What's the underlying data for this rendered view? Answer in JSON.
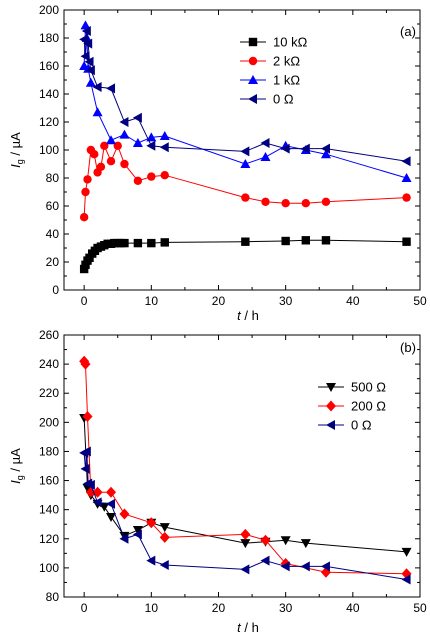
{
  "chart_data": [
    {
      "type": "line",
      "panel_label": "(a)",
      "xlabel": "t / h",
      "xlabel_italic": "t",
      "xlabel_rest": " / h",
      "ylabel_italic": "I",
      "ylabel_sub": "g",
      "ylabel_rest": " / µA",
      "xlim": [
        -3,
        50
      ],
      "ylim": [
        0,
        200
      ],
      "xticks": [
        0,
        10,
        20,
        30,
        40,
        50
      ],
      "yticks": [
        0,
        20,
        40,
        60,
        80,
        100,
        120,
        140,
        160,
        180,
        200
      ],
      "legend_position": "top-right",
      "series": [
        {
          "name": "10 kΩ",
          "color": "#000000",
          "marker": "square",
          "x": [
            0,
            0.2,
            0.5,
            0.8,
            1.2,
            1.6,
            2,
            2.5,
            3,
            3.5,
            4,
            4.5,
            5,
            5.5,
            6,
            8,
            10,
            12,
            24,
            30,
            33,
            36,
            48
          ],
          "y": [
            15,
            18,
            21,
            23,
            26,
            28,
            30,
            31,
            32,
            33,
            33,
            33.5,
            33.5,
            33.5,
            33.5,
            33.5,
            33.5,
            34,
            34.5,
            35,
            35.5,
            35.5,
            34.5
          ]
        },
        {
          "name": "2 kΩ",
          "color": "#ff0000",
          "marker": "circle",
          "x": [
            0,
            0.2,
            0.5,
            1,
            1.5,
            2,
            2.5,
            3,
            4,
            5,
            6,
            8,
            10,
            12,
            24,
            27,
            30,
            33,
            36,
            48
          ],
          "y": [
            52,
            70,
            79,
            100,
            97,
            84,
            88,
            103,
            92,
            103,
            90,
            78,
            81,
            82,
            66,
            63,
            62,
            62,
            63,
            66
          ]
        },
        {
          "name": "1 kΩ",
          "color": "#0000ff",
          "marker": "triangle-up",
          "x": [
            0,
            0.2,
            0.4,
            0.6,
            1,
            2,
            4,
            6,
            8,
            10,
            12,
            24,
            27,
            30,
            33,
            36,
            48
          ],
          "y": [
            160,
            189,
            180,
            158,
            148,
            127,
            107,
            111,
            105,
            109,
            110,
            90,
            95,
            103,
            100,
            97,
            80
          ]
        },
        {
          "name": "0 Ω",
          "color": "#000080",
          "marker": "triangle-left",
          "x": [
            0,
            0.2,
            0.4,
            0.6,
            0.8,
            1,
            2,
            4,
            6,
            8,
            10,
            12,
            24,
            27,
            30,
            33,
            36,
            48
          ],
          "y": [
            179,
            167,
            185,
            176,
            163,
            157,
            145,
            144,
            120,
            123,
            103,
            102,
            99,
            105,
            101,
            101,
            101,
            92
          ]
        }
      ]
    },
    {
      "type": "line",
      "panel_label": "(b)",
      "xlabel": "t / h",
      "xlabel_italic": "t",
      "xlabel_rest": " / h",
      "ylabel_italic": "I",
      "ylabel_sub": "g",
      "ylabel_rest": " / µA",
      "xlim": [
        -3,
        50
      ],
      "ylim": [
        80,
        260
      ],
      "xticks": [
        0,
        10,
        20,
        30,
        40,
        50
      ],
      "yticks": [
        80,
        100,
        120,
        140,
        160,
        180,
        200,
        220,
        240,
        260
      ],
      "legend_position": "right",
      "series": [
        {
          "name": "500 Ω",
          "color": "#000000",
          "marker": "triangle-down",
          "x": [
            0,
            0.5,
            1,
            2,
            3,
            4,
            6,
            8,
            10,
            12,
            24,
            27,
            30,
            33,
            48
          ],
          "y": [
            203,
            155,
            150,
            144,
            142,
            135,
            122,
            126,
            131,
            128,
            117,
            118,
            119,
            117,
            111
          ]
        },
        {
          "name": "200 Ω",
          "color": "#ff0000",
          "marker": "diamond",
          "x": [
            0,
            0.2,
            0.5,
            1,
            2,
            4,
            6,
            10,
            12,
            24,
            27,
            30,
            36,
            48
          ],
          "y": [
            242,
            240,
            204,
            152,
            152,
            152,
            137,
            131,
            121,
            123,
            119,
            103,
            97,
            96
          ]
        },
        {
          "name": "0 Ω",
          "color": "#000080",
          "marker": "triangle-left",
          "x": [
            0,
            0.2,
            0.4,
            0.6,
            1,
            2,
            4,
            6,
            8,
            10,
            12,
            24,
            27,
            30,
            33,
            36,
            48
          ],
          "y": [
            179,
            168,
            180,
            158,
            157,
            145,
            144,
            120,
            123,
            105,
            102,
            99,
            105,
            101,
            101,
            101,
            92
          ]
        }
      ]
    }
  ]
}
